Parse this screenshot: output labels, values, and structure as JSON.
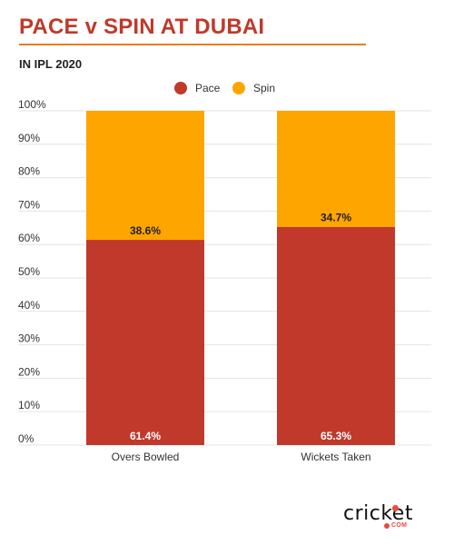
{
  "header": {
    "title": "PACE v SPIN AT DUBAI",
    "subtitle": "IN IPL 2020"
  },
  "colors": {
    "title": "#c0392b",
    "rule": "#e67e22",
    "pace": "#c0392b",
    "spin": "#ffa500",
    "grid": "#e3e3e3"
  },
  "chart_data": {
    "type": "bar",
    "stacked": true,
    "categories": [
      "Overs Bowled",
      "Wickets Taken"
    ],
    "series": [
      {
        "name": "Pace",
        "values": [
          61.4,
          65.3
        ],
        "labels": [
          "61.4%",
          "65.3%"
        ]
      },
      {
        "name": "Spin",
        "values": [
          38.6,
          34.7
        ],
        "labels": [
          "38.6%",
          "34.7%"
        ]
      }
    ],
    "ylim": [
      0,
      100
    ],
    "yticks": [
      "0%",
      "10%",
      "20%",
      "30%",
      "40%",
      "50%",
      "60%",
      "70%",
      "80%",
      "90%",
      "100%"
    ],
    "legend": "top-center",
    "grid": true
  },
  "brand": {
    "logo_text": "cricket",
    "logo_subtext": "COM"
  }
}
